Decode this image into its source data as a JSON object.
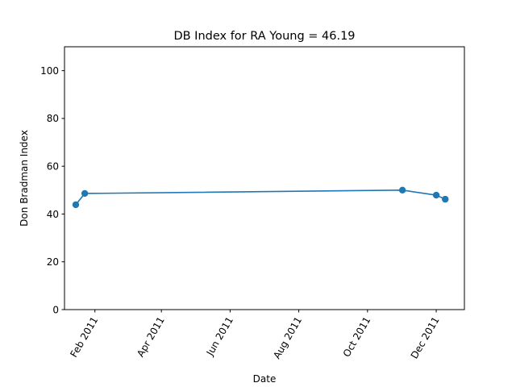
{
  "chart_data": {
    "type": "line",
    "title": "DB Index for RA Young = 46.19",
    "xlabel": "Date",
    "ylabel": "Don Bradman Index",
    "x_ticks": [
      {
        "date": "2011-02-01",
        "label": "Feb 2011"
      },
      {
        "date": "2011-04-01",
        "label": "Apr 2011"
      },
      {
        "date": "2011-06-01",
        "label": "Jun 2011"
      },
      {
        "date": "2011-08-01",
        "label": "Aug 2011"
      },
      {
        "date": "2011-10-01",
        "label": "Oct 2011"
      },
      {
        "date": "2011-12-01",
        "label": "Dec 2011"
      }
    ],
    "y_ticks": [
      0,
      20,
      40,
      60,
      80,
      100
    ],
    "xlim": [
      "2011-01-05",
      "2011-12-26"
    ],
    "ylim": [
      0,
      110
    ],
    "grid": false,
    "color": "#1f77b4",
    "series": [
      {
        "x": [
          "2011-01-15",
          "2011-01-23",
          "2011-11-01",
          "2011-12-01",
          "2011-12-09"
        ],
        "y": [
          43.9,
          48.6,
          50.0,
          47.9,
          46.19
        ]
      }
    ]
  }
}
